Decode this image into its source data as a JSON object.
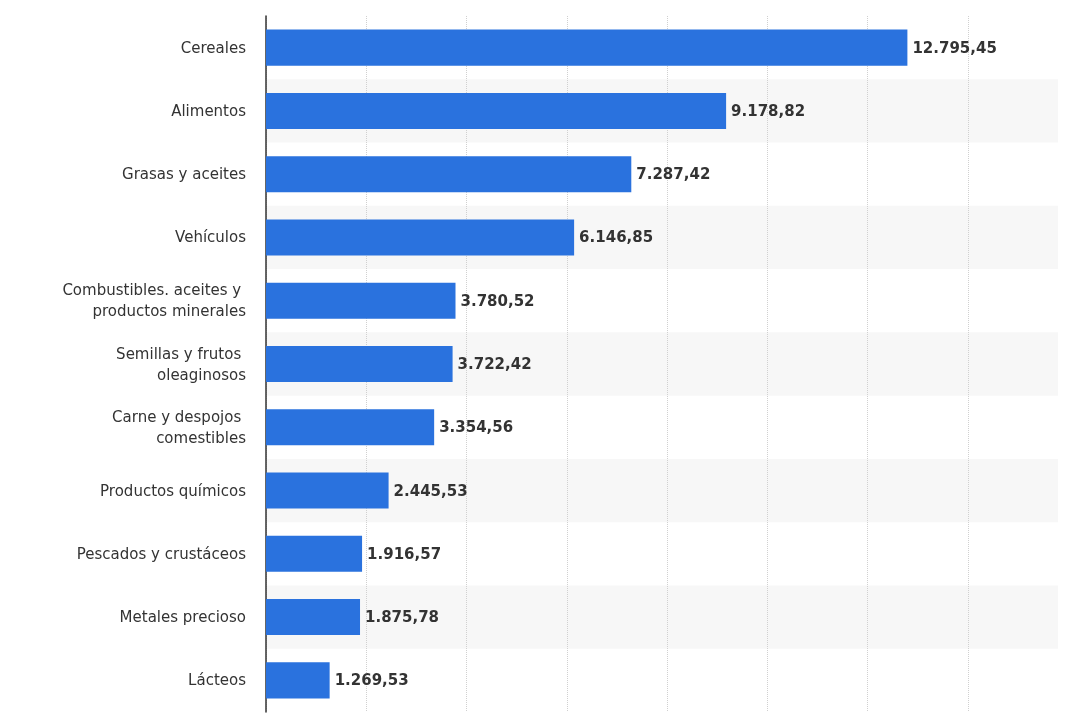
{
  "chart_data": {
    "type": "bar",
    "orientation": "horizontal",
    "categories": [
      "Cereales",
      "Alimentos",
      "Grasas y aceites",
      "Vehículos",
      "Combustibles. aceites y productos minerales",
      "Semillas y frutos oleaginosos",
      "Carne y despojos comestibles",
      "Productos químicos",
      "Pescados y crustáceos",
      "Metales precioso",
      "Lácteos"
    ],
    "values": [
      12795.45,
      9178.82,
      7287.42,
      6146.85,
      3780.52,
      3722.42,
      3354.56,
      2445.53,
      1916.57,
      1875.78,
      1269.53
    ],
    "value_labels": [
      "12.795,45",
      "9.178,82",
      "7.287,42",
      "6.146,85",
      "3.780,52",
      "3.722,42",
      "3.354,56",
      "2.445,53",
      "1.916,57",
      "1.875,78",
      "1.269,53"
    ],
    "color": "#2a72de",
    "xlim": [
      0,
      15800
    ],
    "xticks": [
      {
        "value": 0,
        "label": null
      },
      {
        "value": 2000,
        "label": null
      },
      {
        "value": 4000,
        "label": null
      },
      {
        "value": 6000,
        "label": null
      },
      {
        "value": 8000,
        "label": null
      },
      {
        "value": 10000,
        "label": null
      },
      {
        "value": 12000,
        "label": null
      },
      {
        "value": 14000,
        "label": null
      }
    ],
    "grid": "x",
    "tick_labels": "y"
  }
}
